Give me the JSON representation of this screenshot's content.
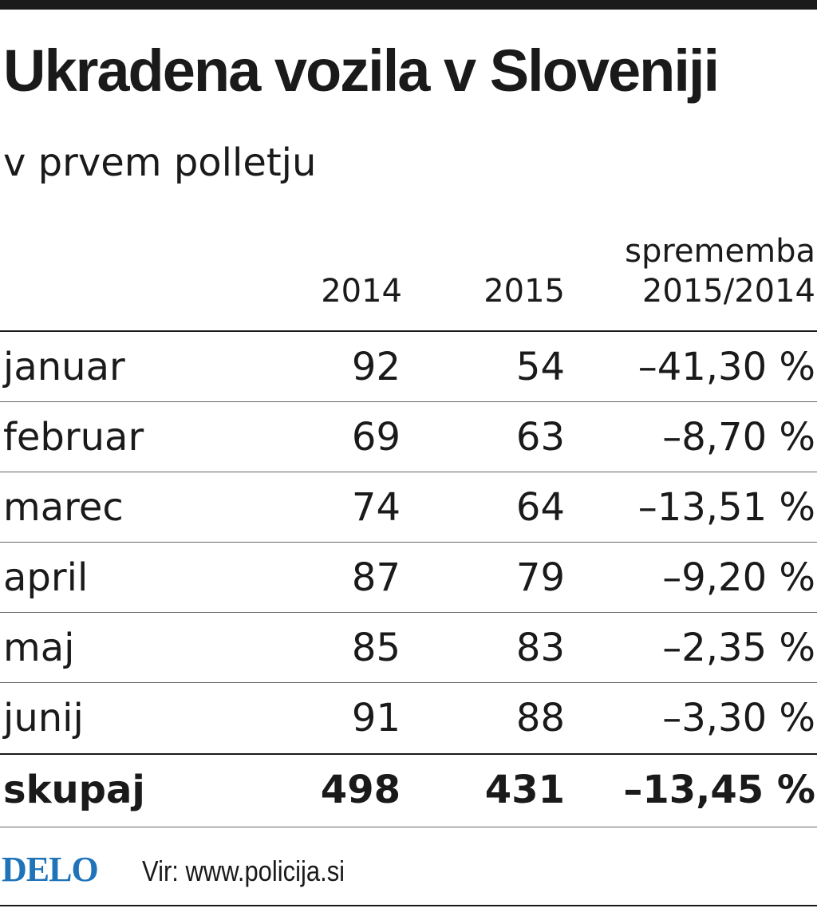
{
  "title": "Ukradena vozila v Sloveniji",
  "subtitle": "v prvem polletju",
  "table": {
    "headers": {
      "year_a": "2014",
      "year_b": "2015",
      "change_line1": "sprememba",
      "change_line2": "2015/2014"
    },
    "rows": [
      {
        "month": "januar",
        "y2014": "92",
        "y2015": "54",
        "change": "–41,30 %"
      },
      {
        "month": "februar",
        "y2014": "69",
        "y2015": "63",
        "change": "–8,70 %"
      },
      {
        "month": "marec",
        "y2014": "74",
        "y2015": "64",
        "change": "–13,51 %"
      },
      {
        "month": "april",
        "y2014": "87",
        "y2015": "79",
        "change": "–9,20 %"
      },
      {
        "month": "maj",
        "y2014": "85",
        "y2015": "83",
        "change": "–2,35 %"
      },
      {
        "month": "junij",
        "y2014": "91",
        "y2015": "88",
        "change": "–3,30 %"
      }
    ],
    "total": {
      "month": "skupaj",
      "y2014": "498",
      "y2015": "431",
      "change": "–13,45 %"
    }
  },
  "footer": {
    "logo": "DELO",
    "source": "Vir: www.policija.si"
  },
  "colors": {
    "logo": "#1e73b9",
    "text": "#1a1a1a"
  }
}
